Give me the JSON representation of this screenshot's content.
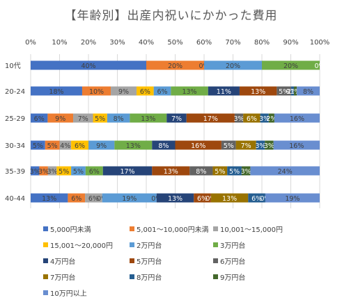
{
  "chart_data": {
    "type": "bar",
    "orientation": "horizontal",
    "stacked": "percent",
    "title": "【年齢別】出産内祝いにかかった費用",
    "x_ticks": [
      "0%",
      "10%",
      "20%",
      "30%",
      "40%",
      "50%",
      "60%",
      "70%",
      "80%",
      "90%",
      "100%"
    ],
    "categories": [
      "10代",
      "20-24",
      "25-29",
      "30-34",
      "35-39",
      "40-44"
    ],
    "grid": true,
    "legend_position": "bottom",
    "series": [
      {
        "name": "5,000円未満",
        "color": "#4472C4",
        "values": [
          40,
          18,
          6,
          5,
          3,
          13
        ],
        "labels": [
          "40%",
          "18%",
          "6%",
          "5%",
          "3%",
          "13%"
        ]
      },
      {
        "name": "5,001～10,000円未満",
        "color": "#ED7D31",
        "values": [
          20,
          10,
          9,
          5,
          3,
          6
        ],
        "labels": [
          "20%",
          "10%",
          "9%",
          "5%",
          "3%",
          "6%"
        ]
      },
      {
        "name": "10,001～15,000円",
        "color": "#A5A5A5",
        "values": [
          0,
          9,
          7,
          4,
          3,
          6
        ],
        "labels": [
          "0%",
          "9%",
          "7%",
          "4%",
          "3%",
          "6%"
        ]
      },
      {
        "name": "15,001～20,000円",
        "color": "#FFC000",
        "values": [
          0,
          6,
          5,
          6,
          5,
          0
        ],
        "labels": [
          "",
          "6%",
          "5%",
          "6%",
          "5%",
          "0%"
        ]
      },
      {
        "name": "2万円台",
        "color": "#5B9BD5",
        "values": [
          20,
          6,
          8,
          9,
          5,
          19
        ],
        "labels": [
          "20%",
          "6%",
          "8%",
          "9%",
          "5%",
          "19%"
        ]
      },
      {
        "name": "3万円台",
        "color": "#70AD47",
        "values": [
          20,
          13,
          13,
          13,
          6,
          0
        ],
        "labels": [
          "20%",
          "13%",
          "13%",
          "13%",
          "6%",
          "0%"
        ]
      },
      {
        "name": "4万円台",
        "color": "#264478",
        "values": [
          0,
          11,
          7,
          8,
          17,
          13
        ],
        "labels": [
          "",
          "11%",
          "7%",
          "8%",
          "17%",
          "13%"
        ]
      },
      {
        "name": "5万円台",
        "color": "#9E480E",
        "values": [
          0,
          13,
          17,
          16,
          13,
          6
        ],
        "labels": [
          "",
          "13%",
          "17%",
          "16%",
          "13%",
          "6%"
        ]
      },
      {
        "name": "6万円台",
        "color": "#636363",
        "values": [
          0,
          5,
          3,
          5,
          8,
          0
        ],
        "labels": [
          "",
          "5%",
          "3%",
          "5%",
          "8%",
          "0%"
        ]
      },
      {
        "name": "7万円台",
        "color": "#997300",
        "values": [
          0,
          0,
          6,
          7,
          5,
          13
        ],
        "labels": [
          "",
          "0%",
          "6%",
          "7%",
          "5%",
          "13%"
        ]
      },
      {
        "name": "8万円台",
        "color": "#255E91",
        "values": [
          0,
          1,
          3,
          3,
          5,
          6
        ],
        "labels": [
          "",
          "1%",
          "3%",
          "3%",
          "5%",
          "6%"
        ]
      },
      {
        "name": "9万円台",
        "color": "#43682B",
        "values": [
          0,
          1,
          2,
          3,
          3,
          0
        ],
        "labels": [
          "0%",
          "1%",
          "2%",
          "3%",
          "3%",
          "0%"
        ]
      },
      {
        "name": "10万円以上",
        "color": "#698ED0",
        "values": [
          0,
          8,
          16,
          16,
          24,
          19
        ],
        "labels": [
          "",
          "8%",
          "16%",
          "16%",
          "24%",
          "19%"
        ]
      }
    ]
  }
}
